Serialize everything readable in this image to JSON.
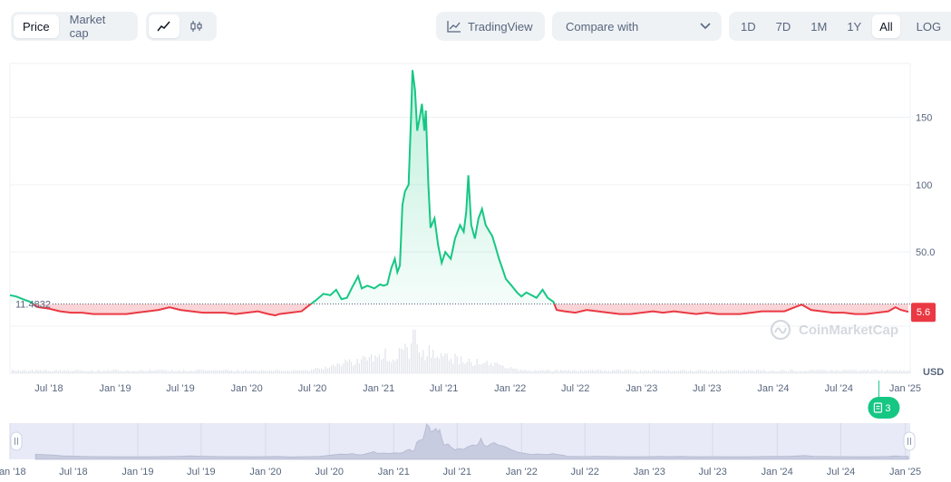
{
  "toolbar": {
    "view_tabs": [
      {
        "label": "Price",
        "active": true
      },
      {
        "label": "Market cap",
        "active": false
      }
    ],
    "chart_type_icons": [
      "line-chart-icon",
      "candlestick-icon"
    ],
    "tradingview_label": "TradingView",
    "compare_label": "Compare with",
    "ranges": [
      {
        "label": "1D",
        "active": false
      },
      {
        "label": "7D",
        "active": false
      },
      {
        "label": "1M",
        "active": false
      },
      {
        "label": "1Y",
        "active": false
      },
      {
        "label": "All",
        "active": true
      }
    ],
    "log_label": "LOG",
    "more_label": "···"
  },
  "colors": {
    "up": "#16c784",
    "down": "#ea3943",
    "grid": "#eff2f5",
    "text": "#58667e",
    "navigator_bg": "#e8eaf7"
  },
  "chart_data": {
    "type": "area",
    "ylabel": "USD",
    "baseline_label": "11.4832",
    "baseline_value": 11.4832,
    "current_label": "5.6",
    "current_value": 5.6,
    "yticks": [
      {
        "label": "150",
        "value": 150
      },
      {
        "label": "100",
        "value": 100
      },
      {
        "label": "50.0",
        "value": 50
      }
    ],
    "ylim": [
      -40,
      190
    ],
    "xlim": [
      "2018-03-15",
      "2025-01-15"
    ],
    "xticks": [
      {
        "label": "Jul '18",
        "date": "2018-07-01"
      },
      {
        "label": "Jan '19",
        "date": "2019-01-01"
      },
      {
        "label": "Jul '19",
        "date": "2019-07-01"
      },
      {
        "label": "Jan '20",
        "date": "2020-01-01"
      },
      {
        "label": "Jul '20",
        "date": "2020-07-01"
      },
      {
        "label": "Jan '21",
        "date": "2021-01-01"
      },
      {
        "label": "Jul '21",
        "date": "2021-07-01"
      },
      {
        "label": "Jan '22",
        "date": "2022-01-01"
      },
      {
        "label": "Jul '22",
        "date": "2022-07-01"
      },
      {
        "label": "Jan '23",
        "date": "2023-01-01"
      },
      {
        "label": "Jul '23",
        "date": "2023-07-01"
      },
      {
        "label": "Jan '24",
        "date": "2024-01-01"
      },
      {
        "label": "Jul '24",
        "date": "2024-07-01"
      },
      {
        "label": "Jan '25",
        "date": "2025-01-01"
      }
    ],
    "navigator_xticks": [
      "Jan '18",
      "Jul '18",
      "Jan '19",
      "Jul '19",
      "Jan '20",
      "Jul '20",
      "Jan '21",
      "Jul '21",
      "Jan '22",
      "Jul '22",
      "Jan '23",
      "Jul '23",
      "Jan '24",
      "Jul '24",
      "Jan '25"
    ],
    "series": [
      {
        "values": [
          [
            "2018-03-15",
            18
          ],
          [
            "2018-04-01",
            17
          ],
          [
            "2018-04-20",
            15
          ],
          [
            "2018-05-10",
            13
          ],
          [
            "2018-06-01",
            9
          ],
          [
            "2018-07-01",
            8
          ],
          [
            "2018-08-01",
            6
          ],
          [
            "2018-09-01",
            5
          ],
          [
            "2018-10-01",
            5
          ],
          [
            "2018-11-01",
            4
          ],
          [
            "2018-12-01",
            4
          ],
          [
            "2019-01-01",
            4
          ],
          [
            "2019-02-01",
            4
          ],
          [
            "2019-03-01",
            5
          ],
          [
            "2019-04-01",
            6
          ],
          [
            "2019-05-01",
            7
          ],
          [
            "2019-06-01",
            9
          ],
          [
            "2019-07-01",
            7
          ],
          [
            "2019-08-01",
            6
          ],
          [
            "2019-09-01",
            5
          ],
          [
            "2019-10-01",
            5
          ],
          [
            "2019-11-01",
            5
          ],
          [
            "2019-12-01",
            4
          ],
          [
            "2020-01-01",
            5
          ],
          [
            "2020-02-01",
            6
          ],
          [
            "2020-03-01",
            4
          ],
          [
            "2020-03-20",
            3
          ],
          [
            "2020-04-01",
            4
          ],
          [
            "2020-05-01",
            5
          ],
          [
            "2020-06-01",
            6
          ],
          [
            "2020-06-20",
            10
          ],
          [
            "2020-07-10",
            14
          ],
          [
            "2020-08-01",
            19
          ],
          [
            "2020-08-20",
            18
          ],
          [
            "2020-09-05",
            22
          ],
          [
            "2020-09-20",
            15
          ],
          [
            "2020-10-05",
            16
          ],
          [
            "2020-10-20",
            24
          ],
          [
            "2020-11-05",
            32
          ],
          [
            "2020-11-15",
            23
          ],
          [
            "2020-12-01",
            25
          ],
          [
            "2020-12-20",
            23
          ],
          [
            "2021-01-05",
            26
          ],
          [
            "2021-01-15",
            25
          ],
          [
            "2021-01-25",
            26
          ],
          [
            "2021-02-05",
            38
          ],
          [
            "2021-02-15",
            45
          ],
          [
            "2021-02-22",
            35
          ],
          [
            "2021-03-01",
            40
          ],
          [
            "2021-03-08",
            85
          ],
          [
            "2021-03-15",
            95
          ],
          [
            "2021-03-25",
            100
          ],
          [
            "2021-04-01",
            150
          ],
          [
            "2021-04-05",
            185
          ],
          [
            "2021-04-12",
            170
          ],
          [
            "2021-04-18",
            140
          ],
          [
            "2021-04-25",
            150
          ],
          [
            "2021-05-01",
            160
          ],
          [
            "2021-05-08",
            140
          ],
          [
            "2021-05-12",
            155
          ],
          [
            "2021-05-19",
            100
          ],
          [
            "2021-05-25",
            68
          ],
          [
            "2021-06-05",
            75
          ],
          [
            "2021-06-15",
            55
          ],
          [
            "2021-06-25",
            42
          ],
          [
            "2021-07-05",
            50
          ],
          [
            "2021-07-20",
            45
          ],
          [
            "2021-08-01",
            60
          ],
          [
            "2021-08-15",
            70
          ],
          [
            "2021-08-25",
            65
          ],
          [
            "2021-09-01",
            80
          ],
          [
            "2021-09-07",
            107
          ],
          [
            "2021-09-15",
            70
          ],
          [
            "2021-09-25",
            60
          ],
          [
            "2021-10-05",
            75
          ],
          [
            "2021-10-15",
            82
          ],
          [
            "2021-10-25",
            70
          ],
          [
            "2021-11-05",
            65
          ],
          [
            "2021-11-12",
            62
          ],
          [
            "2021-11-20",
            55
          ],
          [
            "2021-12-01",
            45
          ],
          [
            "2021-12-10",
            38
          ],
          [
            "2021-12-20",
            30
          ],
          [
            "2022-01-05",
            25
          ],
          [
            "2022-01-20",
            20
          ],
          [
            "2022-02-01",
            17
          ],
          [
            "2022-02-15",
            20
          ],
          [
            "2022-03-01",
            18
          ],
          [
            "2022-03-15",
            16
          ],
          [
            "2022-04-01",
            22
          ],
          [
            "2022-04-15",
            16
          ],
          [
            "2022-05-01",
            13
          ],
          [
            "2022-05-10",
            7
          ],
          [
            "2022-06-01",
            6
          ],
          [
            "2022-07-01",
            5
          ],
          [
            "2022-08-01",
            7
          ],
          [
            "2022-09-01",
            6
          ],
          [
            "2022-10-01",
            5
          ],
          [
            "2022-11-01",
            4
          ],
          [
            "2022-12-01",
            4
          ],
          [
            "2023-01-01",
            5
          ],
          [
            "2023-02-01",
            6
          ],
          [
            "2023-03-01",
            5
          ],
          [
            "2023-04-01",
            6
          ],
          [
            "2023-05-01",
            5
          ],
          [
            "2023-06-01",
            4
          ],
          [
            "2023-07-01",
            5
          ],
          [
            "2023-08-01",
            4
          ],
          [
            "2023-09-01",
            4
          ],
          [
            "2023-10-01",
            4
          ],
          [
            "2023-11-01",
            5
          ],
          [
            "2023-12-01",
            6
          ],
          [
            "2024-01-01",
            6
          ],
          [
            "2024-02-01",
            6
          ],
          [
            "2024-03-01",
            9
          ],
          [
            "2024-03-20",
            11
          ],
          [
            "2024-04-15",
            7
          ],
          [
            "2024-05-15",
            6
          ],
          [
            "2024-06-15",
            5
          ],
          [
            "2024-07-15",
            5
          ],
          [
            "2024-08-15",
            4
          ],
          [
            "2024-09-15",
            4
          ],
          [
            "2024-10-15",
            5
          ],
          [
            "2024-11-15",
            6
          ],
          [
            "2024-12-05",
            9
          ],
          [
            "2024-12-20",
            7
          ],
          [
            "2025-01-10",
            5.6
          ]
        ]
      }
    ],
    "volume_spike": "2021-04-10",
    "news_badge": {
      "label": "3",
      "date": "2024-10-20"
    },
    "watermark": "CoinMarketCap"
  }
}
